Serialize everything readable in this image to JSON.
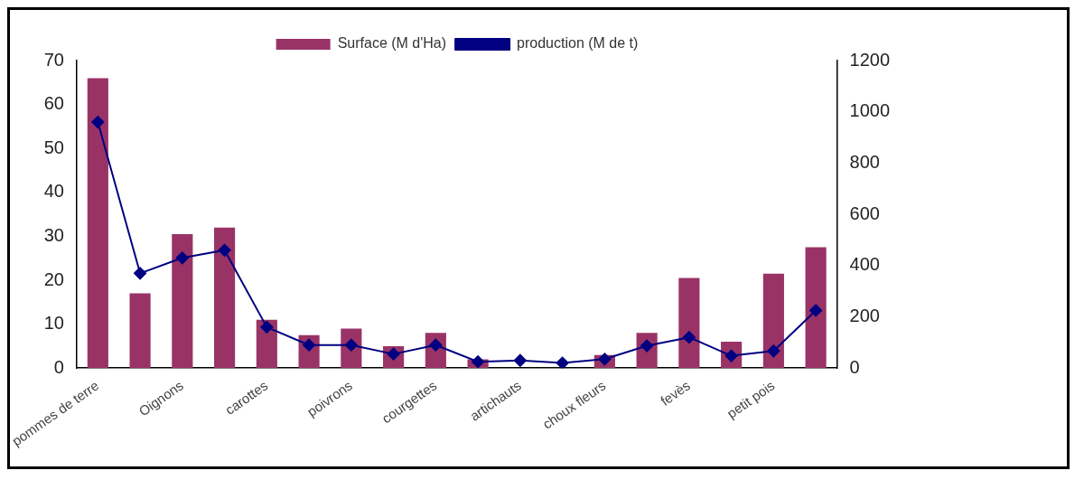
{
  "chart_data": {
    "type": "bar",
    "categories": [
      "pommes de terre",
      null,
      "Oignons",
      null,
      "carottes",
      null,
      "poivrons",
      null,
      "courgettes",
      null,
      "artichauts",
      null,
      "choux fleurs",
      null,
      "fevès",
      null,
      "petit pois",
      null
    ],
    "series": [
      {
        "name": "Surface (M d'Ha)",
        "color": "#993366",
        "values": [
          66,
          17,
          30.5,
          32,
          11,
          7.5,
          9,
          5,
          8,
          2,
          null,
          null,
          3,
          8,
          20.5,
          6,
          21.5,
          27.5
        ]
      },
      {
        "name": "production (M de t)",
        "type": "line",
        "axis": "y2",
        "color": "#000080",
        "marker": "diamond",
        "values": [
          960,
          370,
          430,
          460,
          160,
          90,
          90,
          55,
          90,
          25,
          30,
          20,
          35,
          87,
          120,
          48,
          67,
          225
        ]
      }
    ],
    "ylim": [
      0,
      70
    ],
    "yticks": [
      0,
      10,
      20,
      30,
      40,
      50,
      60,
      70
    ],
    "y2lim": [
      0,
      1200
    ],
    "y2ticks": [
      0,
      200,
      400,
      600,
      800,
      1000,
      1200
    ],
    "grid": false,
    "legend": "top"
  }
}
